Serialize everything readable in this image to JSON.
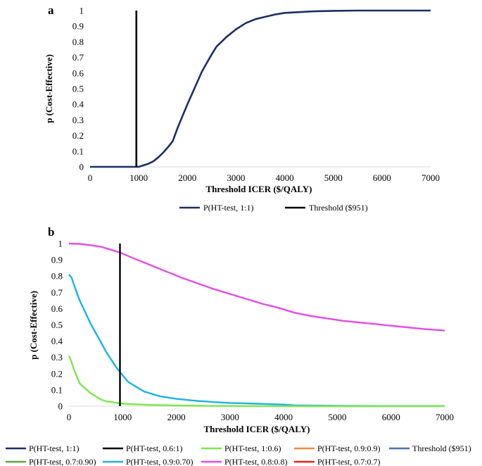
{
  "chart_data": [
    {
      "panel": "a",
      "type": "line",
      "xlabel": "Threshold ICER ($/QALY)",
      "ylabel": "p (Cost-Effective)",
      "xlim": [
        0,
        7000
      ],
      "ylim": [
        0,
        1
      ],
      "xticks": [
        "0",
        "1000",
        "2000",
        "3000",
        "4000",
        "5000",
        "6000",
        "7000"
      ],
      "yticks": [
        "0",
        "0.1",
        "0.2",
        "0.3",
        "0.4",
        "0.5",
        "0.6",
        "0.7",
        "0.8",
        "0.9",
        "1"
      ],
      "legend": [
        "P(HT-test, 1:1)",
        "Threshold ($951)"
      ],
      "series": [
        {
          "name": "P(HT-test, 1:1)",
          "color": "#1b2f66",
          "x": [
            0,
            100,
            200,
            300,
            400,
            500,
            600,
            700,
            800,
            900,
            951,
            1000,
            1100,
            1200,
            1300,
            1400,
            1500,
            1600,
            1700,
            1800,
            1900,
            2000,
            2100,
            2200,
            2300,
            2400,
            2500,
            2600,
            2700,
            2800,
            2900,
            3000,
            3200,
            3400,
            3600,
            3800,
            4000,
            4300,
            4600,
            5000,
            5500,
            6000,
            6500,
            7000
          ],
          "y": [
            0,
            0,
            0,
            0,
            0,
            0,
            0,
            0,
            0,
            0,
            0,
            0,
            0.01,
            0.02,
            0.035,
            0.06,
            0.09,
            0.125,
            0.165,
            0.25,
            0.325,
            0.4,
            0.47,
            0.54,
            0.61,
            0.665,
            0.72,
            0.77,
            0.8,
            0.83,
            0.855,
            0.88,
            0.92,
            0.945,
            0.96,
            0.975,
            0.985,
            0.99,
            0.995,
            0.998,
            1,
            1,
            1,
            1
          ]
        },
        {
          "name": "Threshold ($951)",
          "color": "#000000",
          "x": [
            951,
            951
          ],
          "y": [
            0,
            1
          ]
        }
      ]
    },
    {
      "panel": "b",
      "type": "line",
      "xlabel": "Threshold ICER ($/QALY)",
      "ylabel": "p (Cost-Effective)",
      "xlim": [
        0,
        7000
      ],
      "ylim": [
        0,
        1
      ],
      "xticks": [
        "0",
        "1000",
        "2000",
        "3000",
        "4000",
        "5000",
        "6000",
        "7000"
      ],
      "yticks": [
        "0",
        "0.1",
        "0.2",
        "0.3",
        "0.4",
        "0.5",
        "0.6",
        "0.7",
        "0.8",
        "0.9",
        "1"
      ],
      "legend": [
        "P(HT-test, 1:1)",
        "P(HT-test, 0.6:1)",
        "P(HT-test, 1:0.6)",
        "P(HT-test, 0.9:0.9)",
        "Threshold ($951)",
        "P(HT-test, 0.7:0.90)",
        "P(HT-test, 0.9:0.70)",
        "P(HT-test, 0.8:0.8)",
        "P(HT-test, 0.7:0.7)"
      ],
      "series": [
        {
          "name": "P(HT-test, 0.8:0.8)",
          "color": "#e44ce6",
          "x": [
            0,
            200,
            400,
            600,
            800,
            951,
            1200,
            1500,
            1800,
            2100,
            2400,
            2700,
            3000,
            3300,
            3600,
            3900,
            4200,
            4500,
            4800,
            5100,
            5400,
            5700,
            6000,
            6300,
            6600,
            7000
          ],
          "y": [
            1,
            0.998,
            0.99,
            0.98,
            0.96,
            0.945,
            0.91,
            0.87,
            0.83,
            0.79,
            0.755,
            0.72,
            0.69,
            0.66,
            0.63,
            0.605,
            0.575,
            0.555,
            0.54,
            0.525,
            0.515,
            0.505,
            0.495,
            0.485,
            0.475,
            0.465
          ]
        },
        {
          "name": "P(HT-test, 0.9:0.70)",
          "color": "#1ab2e8",
          "x": [
            0,
            50,
            100,
            200,
            300,
            400,
            500,
            600,
            700,
            800,
            900,
            1000,
            1100,
            1200,
            1300,
            1400,
            1500,
            1700,
            2000,
            2300,
            2700,
            3000,
            3500,
            4000,
            4200,
            5000,
            6000,
            7000
          ],
          "y": [
            0.81,
            0.79,
            0.74,
            0.65,
            0.58,
            0.51,
            0.45,
            0.39,
            0.33,
            0.28,
            0.23,
            0.19,
            0.15,
            0.13,
            0.11,
            0.09,
            0.08,
            0.06,
            0.045,
            0.035,
            0.025,
            0.02,
            0.015,
            0.01,
            0.005,
            0.002,
            0.001,
            0.001
          ]
        },
        {
          "name": "P(HT-test, 1:0.6)",
          "color": "#7ce84a",
          "x": [
            0,
            50,
            100,
            150,
            200,
            300,
            400,
            500,
            600,
            700,
            800,
            900,
            1000,
            1200,
            1500,
            2000,
            2500,
            3000,
            4000,
            5000,
            6000,
            7000
          ],
          "y": [
            0.31,
            0.27,
            0.22,
            0.18,
            0.14,
            0.11,
            0.08,
            0.06,
            0.04,
            0.03,
            0.025,
            0.02,
            0.015,
            0.012,
            0.008,
            0.004,
            0.002,
            0.001,
            0,
            0,
            0,
            0
          ]
        },
        {
          "name": "Threshold ($951)",
          "color": "#000000",
          "x": [
            951,
            951
          ],
          "y": [
            0,
            1
          ]
        }
      ],
      "legend_colors": [
        "#1b2f66",
        "#000000",
        "#7ce84a",
        "#f08a3c",
        "#4a72b8",
        "#5aa83a",
        "#1ab2e8",
        "#e44ce6",
        "#e8241c"
      ]
    }
  ],
  "labels": {
    "panel_a": "a",
    "panel_b": "b"
  }
}
